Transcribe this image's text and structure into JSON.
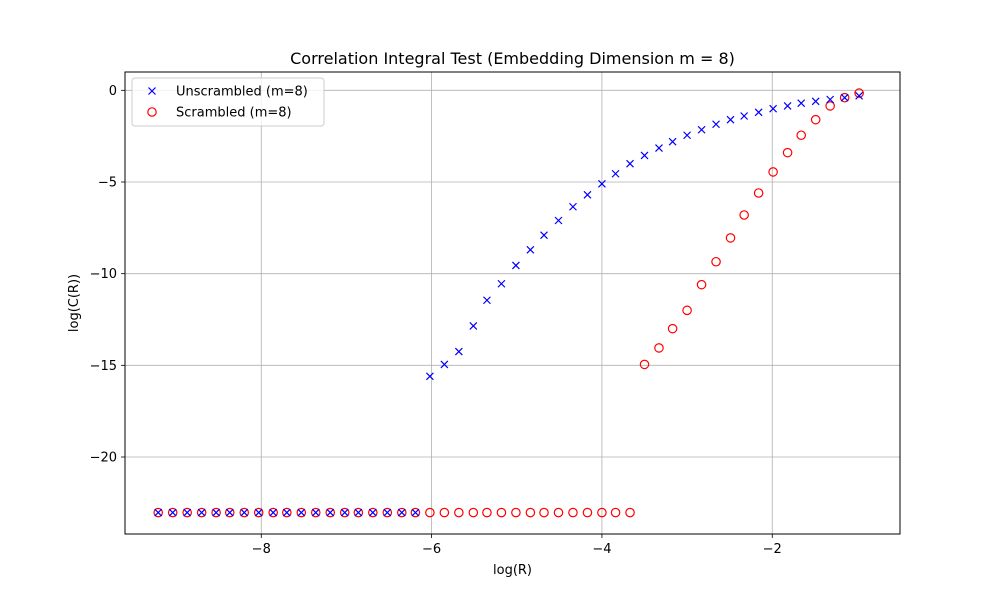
{
  "chart_data": {
    "type": "scatter",
    "title": "Correlation Integral Test (Embedding Dimension m = 8)",
    "xlabel": "log(R)",
    "ylabel": "log(C(R))",
    "xlim": [
      -9.6,
      -0.5
    ],
    "ylim": [
      -24.2,
      1.0
    ],
    "x_ticks": [
      -8,
      -6,
      -4,
      -2
    ],
    "x_tick_labels": [
      "−8",
      "−6",
      "−4",
      "−2"
    ],
    "y_ticks": [
      0,
      -5,
      -10,
      -15,
      -20
    ],
    "y_tick_labels": [
      "0",
      "−5",
      "−10",
      "−15",
      "−20"
    ],
    "grid": true,
    "legend_position": "top-left",
    "series": [
      {
        "name": "Unscrambled (m=8)",
        "marker": "x",
        "color": "#0000ff",
        "points": [
          [
            -9.21,
            -23.03
          ],
          [
            -9.04,
            -23.03
          ],
          [
            -8.87,
            -23.03
          ],
          [
            -8.7,
            -23.03
          ],
          [
            -8.53,
            -23.03
          ],
          [
            -8.37,
            -23.03
          ],
          [
            -8.2,
            -23.03
          ],
          [
            -8.03,
            -23.03
          ],
          [
            -7.86,
            -23.03
          ],
          [
            -7.7,
            -23.03
          ],
          [
            -7.53,
            -23.03
          ],
          [
            -7.36,
            -23.03
          ],
          [
            -7.19,
            -23.03
          ],
          [
            -7.02,
            -23.03
          ],
          [
            -6.86,
            -23.03
          ],
          [
            -6.69,
            -23.03
          ],
          [
            -6.52,
            -23.03
          ],
          [
            -6.35,
            -23.03
          ],
          [
            -6.19,
            -23.03
          ],
          [
            -6.02,
            -15.6
          ],
          [
            -5.85,
            -14.95
          ],
          [
            -5.68,
            -14.25
          ],
          [
            -5.51,
            -12.85
          ],
          [
            -5.35,
            -11.45
          ],
          [
            -5.18,
            -10.55
          ],
          [
            -5.01,
            -9.55
          ],
          [
            -4.84,
            -8.7
          ],
          [
            -4.68,
            -7.9
          ],
          [
            -4.51,
            -7.1
          ],
          [
            -4.34,
            -6.35
          ],
          [
            -4.17,
            -5.7
          ],
          [
            -4.0,
            -5.1
          ],
          [
            -3.84,
            -4.55
          ],
          [
            -3.67,
            -4.0
          ],
          [
            -3.5,
            -3.55
          ],
          [
            -3.33,
            -3.15
          ],
          [
            -3.17,
            -2.8
          ],
          [
            -3.0,
            -2.45
          ],
          [
            -2.83,
            -2.15
          ],
          [
            -2.66,
            -1.85
          ],
          [
            -2.49,
            -1.6
          ],
          [
            -2.33,
            -1.4
          ],
          [
            -2.16,
            -1.2
          ],
          [
            -1.99,
            -1.0
          ],
          [
            -1.82,
            -0.85
          ],
          [
            -1.66,
            -0.7
          ],
          [
            -1.49,
            -0.6
          ],
          [
            -1.32,
            -0.5
          ],
          [
            -1.15,
            -0.4
          ],
          [
            -0.98,
            -0.3
          ]
        ]
      },
      {
        "name": "Scrambled (m=8)",
        "marker": "o",
        "color": "#ff0000",
        "points": [
          [
            -9.21,
            -23.03
          ],
          [
            -9.04,
            -23.03
          ],
          [
            -8.87,
            -23.03
          ],
          [
            -8.7,
            -23.03
          ],
          [
            -8.53,
            -23.03
          ],
          [
            -8.37,
            -23.03
          ],
          [
            -8.2,
            -23.03
          ],
          [
            -8.03,
            -23.03
          ],
          [
            -7.86,
            -23.03
          ],
          [
            -7.7,
            -23.03
          ],
          [
            -7.53,
            -23.03
          ],
          [
            -7.36,
            -23.03
          ],
          [
            -7.19,
            -23.03
          ],
          [
            -7.02,
            -23.03
          ],
          [
            -6.86,
            -23.03
          ],
          [
            -6.69,
            -23.03
          ],
          [
            -6.52,
            -23.03
          ],
          [
            -6.35,
            -23.03
          ],
          [
            -6.19,
            -23.03
          ],
          [
            -6.02,
            -23.03
          ],
          [
            -5.85,
            -23.03
          ],
          [
            -5.68,
            -23.03
          ],
          [
            -5.51,
            -23.03
          ],
          [
            -5.35,
            -23.03
          ],
          [
            -5.18,
            -23.03
          ],
          [
            -5.01,
            -23.03
          ],
          [
            -4.84,
            -23.03
          ],
          [
            -4.68,
            -23.03
          ],
          [
            -4.51,
            -23.03
          ],
          [
            -4.34,
            -23.03
          ],
          [
            -4.17,
            -23.03
          ],
          [
            -4.0,
            -23.03
          ],
          [
            -3.84,
            -23.03
          ],
          [
            -3.67,
            -23.03
          ],
          [
            -3.5,
            -14.95
          ],
          [
            -3.33,
            -14.05
          ],
          [
            -3.17,
            -13.0
          ],
          [
            -3.0,
            -12.0
          ],
          [
            -2.83,
            -10.6
          ],
          [
            -2.66,
            -9.35
          ],
          [
            -2.49,
            -8.05
          ],
          [
            -2.33,
            -6.8
          ],
          [
            -2.16,
            -5.6
          ],
          [
            -1.99,
            -4.45
          ],
          [
            -1.82,
            -3.4
          ],
          [
            -1.66,
            -2.45
          ],
          [
            -1.49,
            -1.6
          ],
          [
            -1.32,
            -0.85
          ],
          [
            -1.15,
            -0.4
          ],
          [
            -0.98,
            -0.15
          ]
        ]
      }
    ]
  }
}
